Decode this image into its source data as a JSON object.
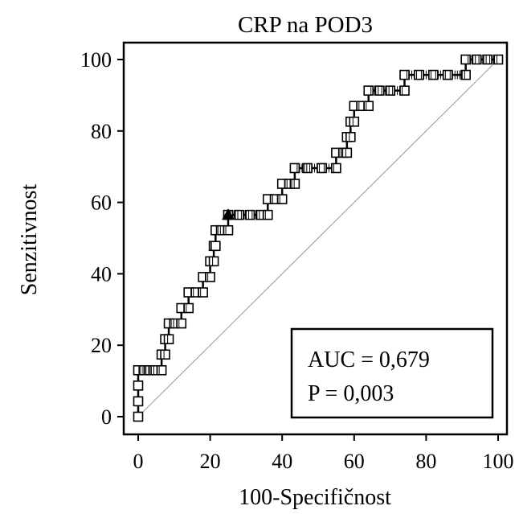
{
  "chart_data": {
    "type": "line",
    "title": "CRP na POD3",
    "xlabel": "100-Specifičnost",
    "ylabel": "Senzitivnost",
    "xlim": [
      0,
      100
    ],
    "ylim": [
      0,
      100
    ],
    "xticks": [
      0,
      20,
      40,
      60,
      80,
      100
    ],
    "yticks": [
      0,
      20,
      40,
      60,
      80,
      100
    ],
    "grid": false,
    "series": [
      {
        "values": [
          {
            "x": 0,
            "y": 0
          },
          {
            "x": 0,
            "y": 4.3
          },
          {
            "x": 0,
            "y": 8.7
          },
          {
            "x": 0,
            "y": 13
          },
          {
            "x": 1.5,
            "y": 13
          },
          {
            "x": 3,
            "y": 13
          },
          {
            "x": 4.5,
            "y": 13
          },
          {
            "x": 6.5,
            "y": 13
          },
          {
            "x": 6.5,
            "y": 17.4
          },
          {
            "x": 7.5,
            "y": 17.4
          },
          {
            "x": 7.5,
            "y": 21.7
          },
          {
            "x": 8.5,
            "y": 21.7
          },
          {
            "x": 8.5,
            "y": 26.1
          },
          {
            "x": 10,
            "y": 26.1
          },
          {
            "x": 12,
            "y": 26.1
          },
          {
            "x": 12,
            "y": 30.4
          },
          {
            "x": 14,
            "y": 30.4
          },
          {
            "x": 14,
            "y": 34.8
          },
          {
            "x": 16,
            "y": 34.8
          },
          {
            "x": 18,
            "y": 34.8
          },
          {
            "x": 18,
            "y": 39.1
          },
          {
            "x": 20,
            "y": 39.1
          },
          {
            "x": 20,
            "y": 43.5
          },
          {
            "x": 21,
            "y": 43.5
          },
          {
            "x": 21,
            "y": 47.8
          },
          {
            "x": 21.5,
            "y": 47.8
          },
          {
            "x": 21.5,
            "y": 52.2
          },
          {
            "x": 23,
            "y": 52.2
          },
          {
            "x": 25,
            "y": 52.2
          },
          {
            "x": 25,
            "y": 56.5
          },
          {
            "x": 28,
            "y": 56.5
          },
          {
            "x": 31,
            "y": 56.5
          },
          {
            "x": 34,
            "y": 56.5
          },
          {
            "x": 36,
            "y": 56.5
          },
          {
            "x": 36,
            "y": 60.9
          },
          {
            "x": 38,
            "y": 60.9
          },
          {
            "x": 40,
            "y": 60.9
          },
          {
            "x": 40,
            "y": 65.2
          },
          {
            "x": 42,
            "y": 65.2
          },
          {
            "x": 43.5,
            "y": 65.2
          },
          {
            "x": 43.5,
            "y": 69.6
          },
          {
            "x": 47,
            "y": 69.6
          },
          {
            "x": 51,
            "y": 69.6
          },
          {
            "x": 55,
            "y": 69.6
          },
          {
            "x": 55,
            "y": 73.9
          },
          {
            "x": 57,
            "y": 73.9
          },
          {
            "x": 58,
            "y": 73.9
          },
          {
            "x": 58,
            "y": 78.3
          },
          {
            "x": 59,
            "y": 78.3
          },
          {
            "x": 59,
            "y": 82.6
          },
          {
            "x": 60,
            "y": 82.6
          },
          {
            "x": 60,
            "y": 87
          },
          {
            "x": 62,
            "y": 87
          },
          {
            "x": 64,
            "y": 87
          },
          {
            "x": 64,
            "y": 91.3
          },
          {
            "x": 67,
            "y": 91.3
          },
          {
            "x": 70,
            "y": 91.3
          },
          {
            "x": 74,
            "y": 91.3
          },
          {
            "x": 74,
            "y": 95.7
          },
          {
            "x": 78,
            "y": 95.7
          },
          {
            "x": 82,
            "y": 95.7
          },
          {
            "x": 86,
            "y": 95.7
          },
          {
            "x": 91,
            "y": 95.7
          },
          {
            "x": 91,
            "y": 100
          },
          {
            "x": 94,
            "y": 100
          },
          {
            "x": 97,
            "y": 100
          },
          {
            "x": 100,
            "y": 100
          }
        ]
      }
    ],
    "reference_line": [
      {
        "x": 0,
        "y": 0
      },
      {
        "x": 100,
        "y": 100
      }
    ],
    "optimal_point": {
      "x": 25,
      "y": 56.5
    },
    "annotations": {
      "auc": "AUC = 0,679",
      "p": "P = 0,003"
    },
    "stats_box_position": "bottom-right"
  }
}
